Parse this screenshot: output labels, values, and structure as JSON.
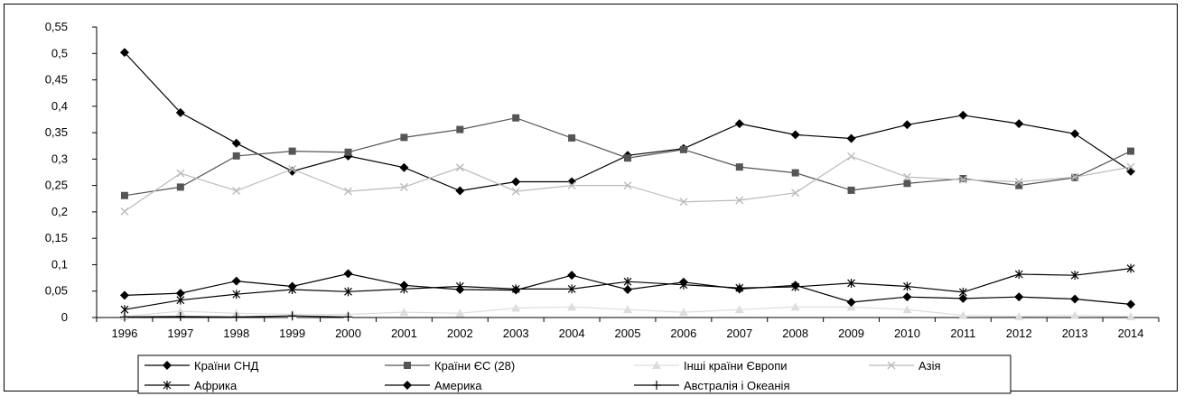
{
  "chart_data": {
    "type": "line",
    "title": "",
    "xlabel": "",
    "ylabel": "",
    "x": [
      "1996",
      "1997",
      "1998",
      "1999",
      "2000",
      "2001",
      "2002",
      "2003",
      "2004",
      "2005",
      "2006",
      "2007",
      "2008",
      "2009",
      "2010",
      "2011",
      "2012",
      "2013",
      "2014"
    ],
    "ylim": [
      0,
      0.55
    ],
    "yticks": [
      "0",
      "0,05",
      "0,1",
      "0,15",
      "0,2",
      "0,25",
      "0,3",
      "0,35",
      "0,4",
      "0,45",
      "0,5",
      "0,55"
    ],
    "grid": false,
    "legend_position": "bottom",
    "series": [
      {
        "name": "Країни СНД",
        "color": "#000000",
        "marker": "diamond",
        "values": [
          0.502,
          0.388,
          0.33,
          0.277,
          0.306,
          0.284,
          0.24,
          0.257,
          0.257,
          0.307,
          0.32,
          0.367,
          0.346,
          0.339,
          0.365,
          0.383,
          0.367,
          0.348,
          0.277
        ]
      },
      {
        "name": "Країни ЄС (28)",
        "color": "#555555",
        "marker": "square",
        "values": [
          0.231,
          0.247,
          0.306,
          0.315,
          0.313,
          0.341,
          0.356,
          0.378,
          0.34,
          0.302,
          0.318,
          0.285,
          0.274,
          0.241,
          0.254,
          0.263,
          0.25,
          0.265,
          0.315
        ]
      },
      {
        "name": "Інші країни Європи",
        "color": "#dddddd",
        "marker": "triangle",
        "values": [
          0.002,
          0.012,
          0.008,
          0.006,
          0.006,
          0.01,
          0.008,
          0.018,
          0.02,
          0.015,
          0.01,
          0.015,
          0.02,
          0.02,
          0.015,
          0.004,
          0.002,
          0.004,
          0.002
        ]
      },
      {
        "name": "Азія",
        "color": "#bbbbbb",
        "marker": "x",
        "values": [
          0.201,
          0.273,
          0.24,
          0.281,
          0.239,
          0.247,
          0.284,
          0.239,
          0.25,
          0.25,
          0.219,
          0.222,
          0.236,
          0.305,
          0.266,
          0.261,
          0.257,
          0.266,
          0.285
        ]
      },
      {
        "name": "Африка",
        "color": "#000000",
        "marker": "star",
        "values": [
          0.015,
          0.033,
          0.044,
          0.053,
          0.049,
          0.054,
          0.059,
          0.054,
          0.054,
          0.068,
          0.062,
          0.056,
          0.058,
          0.065,
          0.059,
          0.048,
          0.082,
          0.08,
          0.093
        ]
      },
      {
        "name": "Америка",
        "color": "#000000",
        "marker": "diamond",
        "values": [
          0.042,
          0.046,
          0.069,
          0.059,
          0.083,
          0.061,
          0.053,
          0.052,
          0.08,
          0.053,
          0.067,
          0.054,
          0.061,
          0.029,
          0.039,
          0.036,
          0.039,
          0.035,
          0.025
        ]
      },
      {
        "name": "Австралія і Океанія",
        "color": "#000000",
        "marker": "plus",
        "values": [
          0.001,
          0.002,
          0.001,
          0.003,
          0.001,
          null,
          null,
          null,
          null,
          null,
          null,
          null,
          null,
          null,
          null,
          null,
          null,
          null,
          null
        ]
      }
    ]
  }
}
